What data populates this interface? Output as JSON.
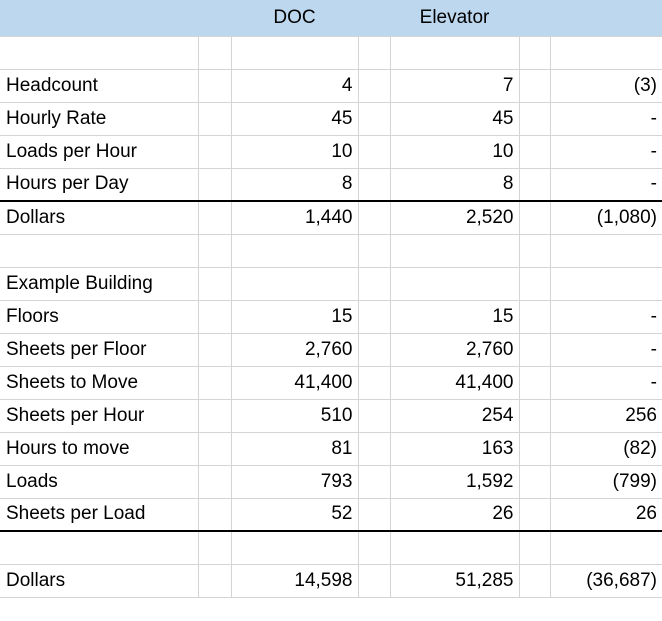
{
  "header": {
    "col_doc": "DOC",
    "col_elevator": "Elevator"
  },
  "colors": {
    "header_fill": "#bdd7ee"
  },
  "rows": [
    {
      "label": "",
      "doc": "",
      "elevator": "",
      "diff": ""
    },
    {
      "label": "Headcount",
      "doc": "4",
      "elevator": "7",
      "diff": "(3)"
    },
    {
      "label": "Hourly Rate",
      "doc": "45",
      "elevator": "45",
      "diff": "-"
    },
    {
      "label": "Loads per Hour",
      "doc": "10",
      "elevator": "10",
      "diff": "-"
    },
    {
      "label": "Hours per Day",
      "doc": "8",
      "elevator": "8",
      "diff": "-"
    },
    {
      "label": "Dollars",
      "doc": "1,440",
      "elevator": "2,520",
      "diff": "(1,080)"
    },
    {
      "label": "",
      "doc": "",
      "elevator": "",
      "diff": ""
    },
    {
      "label": "Example Building",
      "doc": "",
      "elevator": "",
      "diff": ""
    },
    {
      "label": "Floors",
      "doc": "15",
      "elevator": "15",
      "diff": "-"
    },
    {
      "label": "Sheets per Floor",
      "doc": "2,760",
      "elevator": "2,760",
      "diff": "-"
    },
    {
      "label": "Sheets to Move",
      "doc": "41,400",
      "elevator": "41,400",
      "diff": "-"
    },
    {
      "label": "Sheets per Hour",
      "doc": "510",
      "elevator": "254",
      "diff": "256"
    },
    {
      "label": "Hours to move",
      "doc": "81",
      "elevator": "163",
      "diff": "(82)"
    },
    {
      "label": "Loads",
      "doc": "793",
      "elevator": "1,592",
      "diff": "(799)"
    },
    {
      "label": "Sheets per Load",
      "doc": "52",
      "elevator": "26",
      "diff": "26"
    },
    {
      "label": "",
      "doc": "",
      "elevator": "",
      "diff": ""
    },
    {
      "label": "Dollars",
      "doc": "14,598",
      "elevator": "51,285",
      "diff": "(36,687)"
    }
  ]
}
